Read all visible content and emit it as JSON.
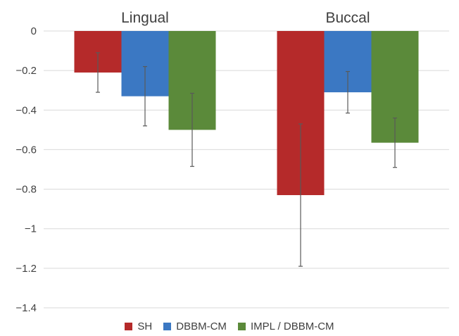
{
  "chart_data": {
    "type": "bar",
    "categories": [
      "Lingual",
      "Buccal"
    ],
    "series": [
      {
        "name": "SH",
        "color": "#b52a2a",
        "values": [
          -0.21,
          -0.83
        ],
        "errors": [
          0.1,
          0.36
        ]
      },
      {
        "name": "DBBM-CM",
        "color": "#3b78c3",
        "values": [
          -0.33,
          -0.31
        ],
        "errors": [
          0.15,
          0.105
        ]
      },
      {
        "name": "IMPL / DBBM-CM",
        "color": "#5b8a3a",
        "values": [
          -0.5,
          -0.565
        ],
        "errors": [
          0.185,
          0.125
        ]
      }
    ],
    "yticks": [
      "0",
      "-0.2",
      "-0.4",
      "-0.6",
      "-0.8",
      "-1",
      "-1.2",
      "-1.4"
    ],
    "ylim": [
      -1.4,
      0
    ],
    "category_label_position": "top",
    "grid": true,
    "legend_position": "bottom"
  }
}
